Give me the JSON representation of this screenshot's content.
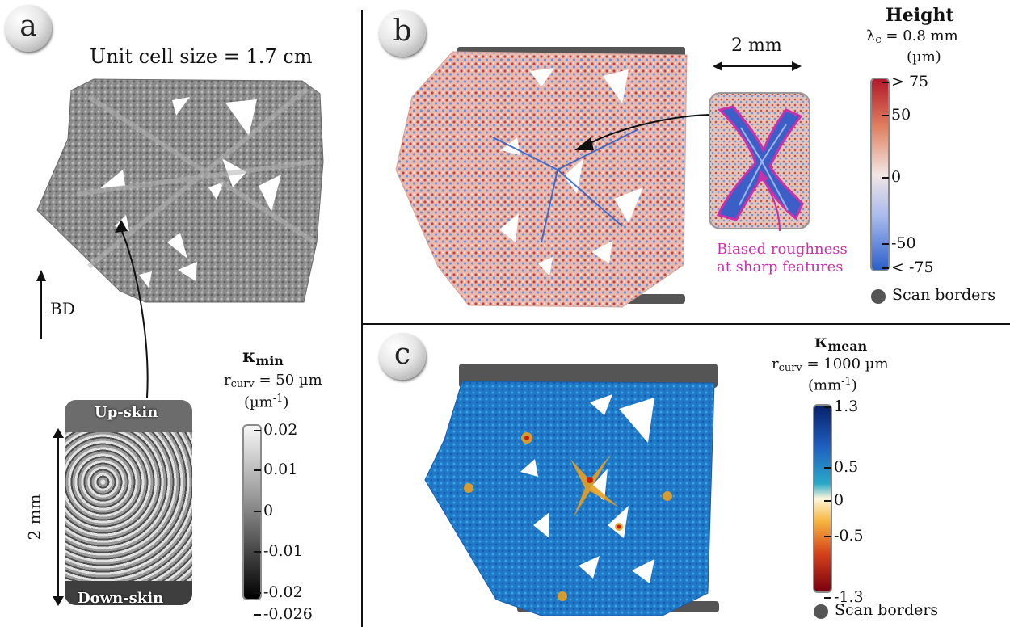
{
  "panels": {
    "a": {
      "badge": "a",
      "title": "Unit cell size = 1.7 cm",
      "bd_label": "BD",
      "inset": {
        "top_label": "Up-skin",
        "bottom_label": "Down-skin",
        "scale_label": "2 mm"
      },
      "colorbar": {
        "symbol": "κ",
        "symbol_sub": "min",
        "param_name": "r",
        "param_sub": "curv",
        "param_value": " = 50 µm",
        "unit": "(µm",
        "unit_sup": "-1",
        "unit_close": ")",
        "ticks": [
          "0.02",
          "0.01",
          "0",
          "-0.01",
          "-0.02",
          "-0.026"
        ]
      }
    },
    "b": {
      "badge": "b",
      "inset": {
        "scale_label": "2 mm",
        "annotation_line1": "Biased roughness",
        "annotation_line2": "at sharp features"
      },
      "colorbar": {
        "title": "Height",
        "param_name": "λ",
        "param_sub": "c",
        "param_value": " = 0.8 mm",
        "unit": "(µm)",
        "ticks": [
          "> 75",
          "50",
          "0",
          "-50",
          "< -75"
        ]
      },
      "legend": "Scan borders"
    },
    "c": {
      "badge": "c",
      "colorbar": {
        "symbol": "κ",
        "symbol_sub": "mean",
        "param_name": "r",
        "param_sub": "curv",
        "param_value": " = 1000 µm",
        "unit": "(mm",
        "unit_sup": "-1",
        "unit_close": ")",
        "ticks": [
          "1.3",
          "0.5",
          "0",
          "-0.5",
          "-1.3"
        ]
      },
      "legend": "Scan borders"
    }
  },
  "colors": {
    "scan_border": "#555555",
    "magenta": "#cc2faa",
    "height_high": "#b2182b",
    "height_low": "#2c5fc8",
    "kmean_high": "#08206a",
    "kmean_low": "#7a0010"
  }
}
